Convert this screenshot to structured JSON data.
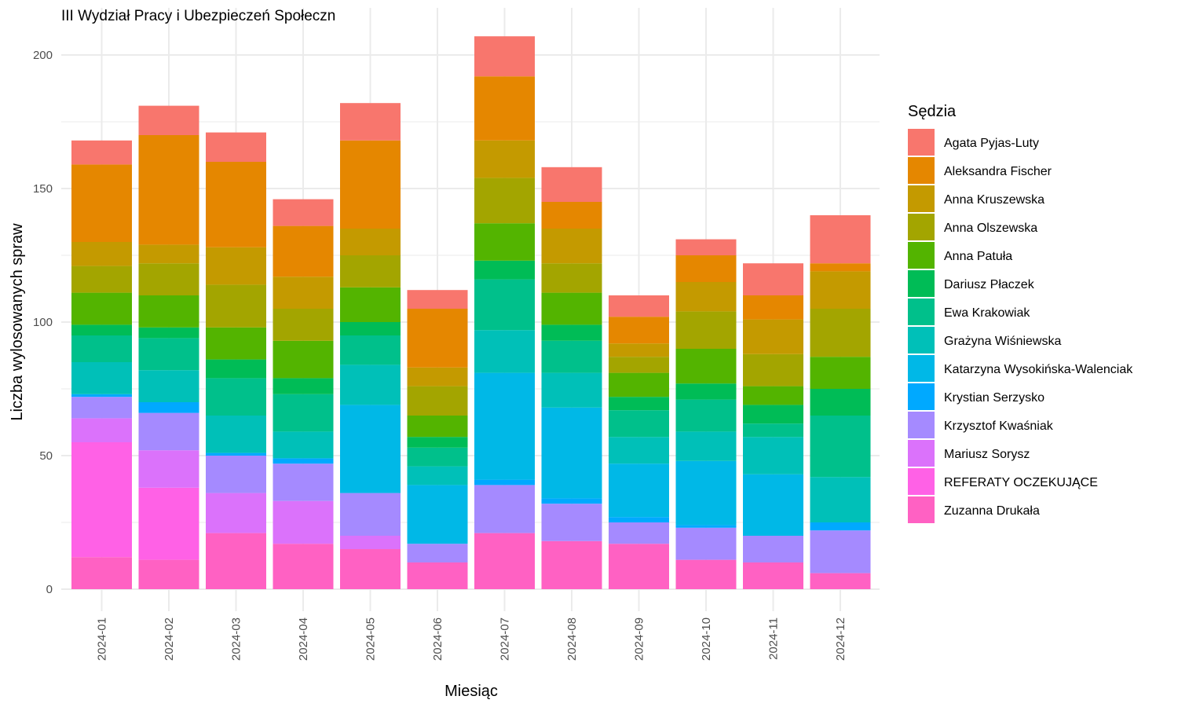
{
  "chart_data": {
    "type": "bar",
    "stacked": true,
    "title": "III Wydział Pracy i Ubezpieczeń Społeczn",
    "xlabel": "Miesiąc",
    "ylabel": "Liczba wylosowanych spraw",
    "ylim": [
      0,
      210
    ],
    "yticks": [
      0,
      50,
      100,
      150,
      200
    ],
    "grid": true,
    "legend": {
      "title": "Sędzia",
      "position": "right"
    },
    "categories": [
      "2024-01",
      "2024-02",
      "2024-03",
      "2024-04",
      "2024-05",
      "2024-06",
      "2024-07",
      "2024-08",
      "2024-09",
      "2024-10",
      "2024-11",
      "2024-12"
    ],
    "series": [
      {
        "name": "Zuzanna Drukała",
        "color": "#FF61C3",
        "values": [
          12,
          11,
          21,
          17,
          15,
          10,
          21,
          18,
          17,
          11,
          10,
          6
        ]
      },
      {
        "name": "REFERATY OCZEKUJĄCE",
        "color": "#FF61E6",
        "values": [
          43,
          27,
          0,
          0,
          0,
          0,
          0,
          0,
          0,
          0,
          0,
          0
        ]
      },
      {
        "name": "Mariusz Sorysz",
        "color": "#DB72FB",
        "values": [
          9,
          14,
          15,
          16,
          5,
          0,
          0,
          0,
          0,
          0,
          0,
          0
        ]
      },
      {
        "name": "Krzysztof Kwaśniak",
        "color": "#A58AFF",
        "values": [
          8,
          14,
          14,
          14,
          16,
          7,
          18,
          14,
          8,
          12,
          10,
          16
        ]
      },
      {
        "name": "Krystian Serzysko",
        "color": "#00A9FF",
        "values": [
          1,
          4,
          1,
          2,
          0,
          0,
          2,
          2,
          2,
          1,
          0,
          3
        ]
      },
      {
        "name": "Katarzyna Wysokińska-Walenciak",
        "color": "#00B8E7",
        "values": [
          0,
          0,
          0,
          0,
          33,
          22,
          40,
          34,
          20,
          24,
          23,
          0
        ]
      },
      {
        "name": "Grażyna Wiśniewska",
        "color": "#00C0B8",
        "values": [
          12,
          12,
          14,
          10,
          15,
          7,
          16,
          13,
          10,
          11,
          14,
          17
        ]
      },
      {
        "name": "Ewa Krakowiak",
        "color": "#00C08B",
        "values": [
          10,
          12,
          14,
          14,
          11,
          7,
          19,
          12,
          10,
          12,
          5,
          23
        ]
      },
      {
        "name": "Dariusz Płaczek",
        "color": "#00BC56",
        "values": [
          4,
          4,
          7,
          6,
          5,
          4,
          7,
          6,
          5,
          6,
          7,
          10
        ]
      },
      {
        "name": "Anna Patuła",
        "color": "#53B400",
        "values": [
          12,
          12,
          12,
          14,
          13,
          8,
          14,
          12,
          9,
          13,
          7,
          12
        ]
      },
      {
        "name": "Anna Olszewska",
        "color": "#A3A500",
        "values": [
          10,
          12,
          16,
          12,
          12,
          11,
          17,
          11,
          6,
          14,
          12,
          18
        ]
      },
      {
        "name": "Anna Kruszewska",
        "color": "#C49A00",
        "values": [
          9,
          7,
          14,
          12,
          10,
          7,
          14,
          13,
          5,
          11,
          13,
          14
        ]
      },
      {
        "name": "Aleksandra Fischer",
        "color": "#E58700",
        "values": [
          29,
          41,
          32,
          19,
          33,
          22,
          24,
          10,
          10,
          10,
          9,
          3
        ]
      },
      {
        "name": "Agata Pyjas-Luty",
        "color": "#F8766D",
        "values": [
          9,
          11,
          11,
          10,
          14,
          7,
          15,
          13,
          8,
          6,
          12,
          18
        ]
      }
    ]
  }
}
